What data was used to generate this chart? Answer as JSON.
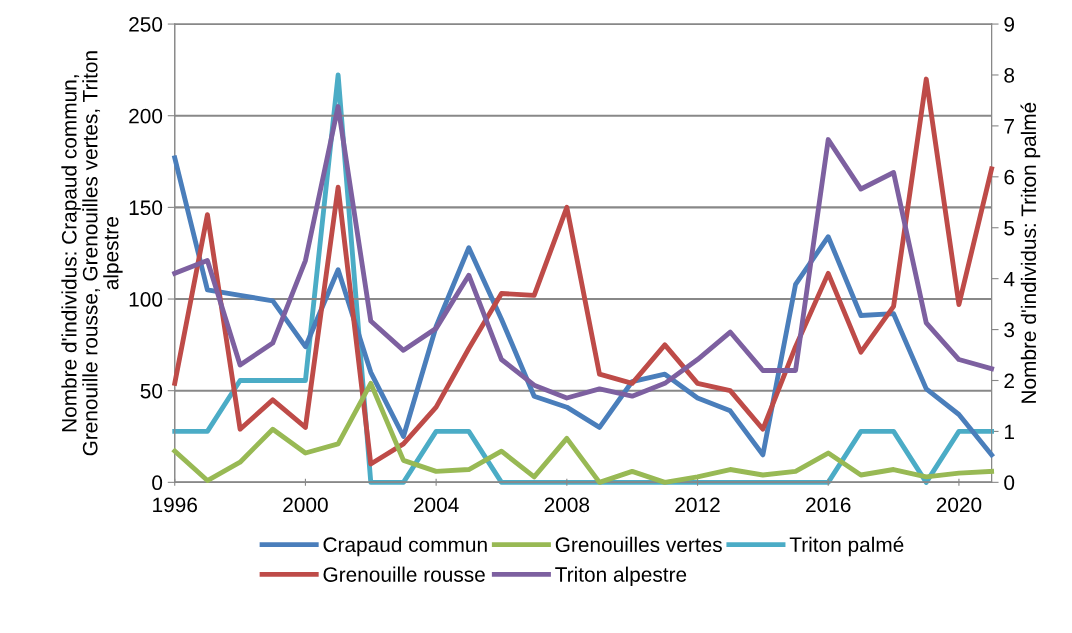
{
  "chart_data": {
    "type": "line",
    "ylabel": "Nombre d'individus: Crapaud commun,\nGrenouille rousse, Grenouilles vertes, Triton\nalpestre",
    "y2label": "Nombre d'individus: Triton palmé",
    "x": [
      1996,
      1997,
      1998,
      1999,
      2000,
      2001,
      2002,
      2003,
      2004,
      2005,
      2006,
      2007,
      2008,
      2009,
      2010,
      2011,
      2012,
      2013,
      2014,
      2015,
      2016,
      2017,
      2018,
      2019,
      2020,
      2021
    ],
    "series": [
      {
        "name": "Crapaud commun",
        "color": "#4a7ebb",
        "values": [
          177,
          105,
          102,
          99,
          74,
          116,
          60,
          25,
          85,
          128,
          89,
          47,
          41,
          30,
          55,
          59,
          46,
          39,
          15,
          108,
          134,
          91,
          92,
          51,
          37,
          15
        ]
      },
      {
        "name": "Grenouille rousse",
        "color": "#be4b48",
        "values": [
          54,
          146,
          29,
          45,
          30,
          161,
          10,
          21,
          41,
          73,
          103,
          102,
          150,
          59,
          54,
          75,
          54,
          50,
          29,
          74,
          114,
          71,
          96,
          220,
          97,
          171
        ]
      },
      {
        "name": "Grenouilles vertes",
        "color": "#98b954",
        "values": [
          17,
          1,
          11,
          29,
          16,
          21,
          54,
          12,
          6,
          7,
          17,
          3,
          24,
          0,
          6,
          0,
          3,
          7,
          4,
          6,
          16,
          4,
          7,
          3,
          5,
          6
        ]
      },
      {
        "name": "Triton alpestre",
        "color": "#7d60a0",
        "values": [
          114,
          121,
          64,
          76,
          121,
          205,
          88,
          72,
          84,
          113,
          67,
          53,
          46,
          51,
          47,
          54,
          67,
          82,
          61,
          61,
          187,
          160,
          169,
          87,
          67,
          62
        ]
      },
      {
        "name": "Triton palmé",
        "color": "#4bacc6",
        "axis": "y2",
        "values": [
          1,
          1,
          2,
          2,
          2,
          8,
          0,
          0,
          1,
          1,
          0,
          0,
          0,
          0,
          0,
          0,
          0,
          0,
          0,
          0,
          0,
          1,
          1,
          0,
          1,
          1
        ]
      }
    ],
    "xlim": [
      1996,
      2021
    ],
    "xticks": [
      1996,
      2000,
      2004,
      2008,
      2012,
      2016,
      2020
    ],
    "ylim": [
      0,
      250
    ],
    "yticks": [
      0,
      50,
      100,
      150,
      200,
      250
    ],
    "y2lim": [
      0,
      9
    ],
    "y2ticks": [
      0,
      1,
      2,
      3,
      4,
      5,
      6,
      7,
      8,
      9
    ],
    "grid": "y",
    "legend": "bottom",
    "marker": "none",
    "line_style": "solid"
  }
}
